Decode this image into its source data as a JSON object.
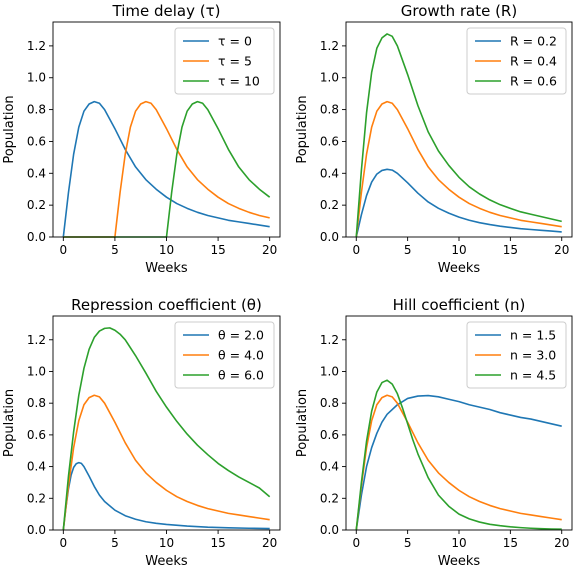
{
  "colors": {
    "series": [
      "#1f77b4",
      "#ff7f0e",
      "#2ca02c"
    ],
    "axes": "#000000",
    "legend_border": "#cccccc"
  },
  "chart_data": [
    {
      "type": "line",
      "title": "Time delay (τ)",
      "xlabel": "Weeks",
      "ylabel": "Population",
      "xlim": [
        -1,
        21
      ],
      "ylim": [
        0,
        1.35
      ],
      "xticks": [
        0,
        5,
        10,
        15,
        20
      ],
      "yticks": [
        0.0,
        0.2,
        0.4,
        0.6,
        0.8,
        1.0,
        1.2
      ],
      "grid": false,
      "legend_position": "top-right",
      "series": [
        {
          "name": "τ = 0",
          "x": [
            0,
            0.5,
            1,
            1.5,
            2,
            2.5,
            3,
            3.5,
            4,
            5,
            6,
            7,
            8,
            9,
            10,
            11,
            12,
            13,
            14,
            15,
            16,
            17,
            18,
            19,
            20
          ],
          "y": [
            0,
            0.28,
            0.52,
            0.69,
            0.79,
            0.835,
            0.85,
            0.84,
            0.8,
            0.68,
            0.55,
            0.44,
            0.36,
            0.3,
            0.25,
            0.21,
            0.18,
            0.155,
            0.135,
            0.12,
            0.105,
            0.095,
            0.085,
            0.075,
            0.065
          ]
        },
        {
          "name": "τ = 5",
          "x": [
            0,
            5,
            5.5,
            6,
            6.5,
            7,
            7.5,
            8,
            8.5,
            9,
            10,
            11,
            12,
            13,
            14,
            15,
            16,
            17,
            18,
            19,
            20
          ],
          "y": [
            0,
            0,
            0.28,
            0.52,
            0.69,
            0.79,
            0.835,
            0.85,
            0.84,
            0.8,
            0.68,
            0.55,
            0.44,
            0.36,
            0.3,
            0.25,
            0.21,
            0.18,
            0.155,
            0.135,
            0.12
          ]
        },
        {
          "name": "τ = 10",
          "x": [
            0,
            10,
            10.5,
            11,
            11.5,
            12,
            12.5,
            13,
            13.5,
            14,
            15,
            16,
            17,
            18,
            19,
            20
          ],
          "y": [
            0,
            0,
            0.28,
            0.52,
            0.69,
            0.79,
            0.835,
            0.85,
            0.84,
            0.8,
            0.68,
            0.55,
            0.44,
            0.36,
            0.3,
            0.25
          ]
        }
      ]
    },
    {
      "type": "line",
      "title": "Growth rate (R)",
      "xlabel": "Weeks",
      "ylabel": "Population",
      "xlim": [
        -1,
        21
      ],
      "ylim": [
        0,
        1.35
      ],
      "xticks": [
        0,
        5,
        10,
        15,
        20
      ],
      "yticks": [
        0.0,
        0.2,
        0.4,
        0.6,
        0.8,
        1.0,
        1.2
      ],
      "grid": false,
      "legend_position": "top-right",
      "series": [
        {
          "name": "R = 0.2",
          "x": [
            0,
            0.5,
            1,
            1.5,
            2,
            2.5,
            3,
            3.5,
            4,
            5,
            6,
            7,
            8,
            9,
            10,
            11,
            12,
            13,
            14,
            15,
            16,
            17,
            18,
            19,
            20
          ],
          "y": [
            0,
            0.14,
            0.26,
            0.345,
            0.395,
            0.418,
            0.425,
            0.42,
            0.4,
            0.34,
            0.275,
            0.22,
            0.18,
            0.15,
            0.125,
            0.105,
            0.09,
            0.078,
            0.068,
            0.06,
            0.052,
            0.047,
            0.042,
            0.037,
            0.032
          ]
        },
        {
          "name": "R = 0.4",
          "x": [
            0,
            0.5,
            1,
            1.5,
            2,
            2.5,
            3,
            3.5,
            4,
            5,
            6,
            7,
            8,
            9,
            10,
            11,
            12,
            13,
            14,
            15,
            16,
            17,
            18,
            19,
            20
          ],
          "y": [
            0,
            0.28,
            0.52,
            0.69,
            0.79,
            0.835,
            0.85,
            0.84,
            0.8,
            0.68,
            0.55,
            0.44,
            0.36,
            0.3,
            0.25,
            0.21,
            0.18,
            0.155,
            0.135,
            0.12,
            0.105,
            0.095,
            0.085,
            0.075,
            0.065
          ]
        },
        {
          "name": "R = 0.6",
          "x": [
            0,
            0.5,
            1,
            1.5,
            2,
            2.5,
            3,
            3.5,
            4,
            5,
            6,
            7,
            8,
            9,
            10,
            11,
            12,
            13,
            14,
            15,
            16,
            17,
            18,
            19,
            20
          ],
          "y": [
            0,
            0.42,
            0.78,
            1.035,
            1.185,
            1.25,
            1.275,
            1.26,
            1.2,
            1.02,
            0.825,
            0.66,
            0.54,
            0.45,
            0.375,
            0.315,
            0.27,
            0.233,
            0.203,
            0.18,
            0.158,
            0.143,
            0.128,
            0.113,
            0.098
          ]
        }
      ]
    },
    {
      "type": "line",
      "title": "Repression coefficient (θ)",
      "xlabel": "Weeks",
      "ylabel": "Population",
      "xlim": [
        -1,
        21
      ],
      "ylim": [
        0,
        1.35
      ],
      "xticks": [
        0,
        5,
        10,
        15,
        20
      ],
      "yticks": [
        0.0,
        0.2,
        0.4,
        0.6,
        0.8,
        1.0,
        1.2
      ],
      "grid": false,
      "legend_position": "top-right",
      "series": [
        {
          "name": "θ = 2.0",
          "x": [
            0,
            0.25,
            0.5,
            0.75,
            1,
            1.25,
            1.5,
            1.75,
            2,
            2.5,
            3,
            3.5,
            4,
            5,
            6,
            7,
            8,
            9,
            10,
            12,
            14,
            16,
            18,
            20
          ],
          "y": [
            0,
            0.14,
            0.26,
            0.345,
            0.395,
            0.418,
            0.425,
            0.42,
            0.4,
            0.34,
            0.275,
            0.22,
            0.18,
            0.125,
            0.09,
            0.068,
            0.052,
            0.042,
            0.035,
            0.025,
            0.018,
            0.014,
            0.011,
            0.009
          ]
        },
        {
          "name": "θ = 4.0",
          "x": [
            0,
            0.5,
            1,
            1.5,
            2,
            2.5,
            3,
            3.5,
            4,
            5,
            6,
            7,
            8,
            9,
            10,
            11,
            12,
            13,
            14,
            15,
            16,
            17,
            18,
            19,
            20
          ],
          "y": [
            0,
            0.28,
            0.52,
            0.69,
            0.79,
            0.835,
            0.85,
            0.84,
            0.8,
            0.68,
            0.55,
            0.44,
            0.36,
            0.3,
            0.25,
            0.21,
            0.18,
            0.155,
            0.135,
            0.12,
            0.105,
            0.095,
            0.085,
            0.075,
            0.065
          ]
        },
        {
          "name": "θ = 6.0",
          "x": [
            0,
            0.5,
            1,
            1.5,
            2,
            2.5,
            3,
            3.5,
            4,
            4.5,
            5,
            5.5,
            6,
            7,
            8,
            9,
            10,
            11,
            12,
            13,
            14,
            15,
            16,
            17,
            18,
            19,
            20
          ],
          "y": [
            0,
            0.34,
            0.62,
            0.85,
            1.02,
            1.14,
            1.215,
            1.255,
            1.272,
            1.275,
            1.26,
            1.235,
            1.2,
            1.1,
            0.99,
            0.875,
            0.775,
            0.685,
            0.605,
            0.535,
            0.475,
            0.42,
            0.375,
            0.335,
            0.3,
            0.265,
            0.21
          ]
        }
      ]
    },
    {
      "type": "line",
      "title": "Hill coefficient (n)",
      "xlabel": "Weeks",
      "ylabel": "Population",
      "xlim": [
        -1,
        21
      ],
      "ylim": [
        0,
        1.35
      ],
      "xticks": [
        0,
        5,
        10,
        15,
        20
      ],
      "yticks": [
        0.0,
        0.2,
        0.4,
        0.6,
        0.8,
        1.0,
        1.2
      ],
      "grid": false,
      "legend_position": "top-right",
      "series": [
        {
          "name": "n = 1.5",
          "x": [
            0,
            0.5,
            1,
            1.5,
            2,
            2.5,
            3,
            4,
            5,
            6,
            7,
            8,
            9,
            10,
            11,
            12,
            13,
            14,
            15,
            16,
            17,
            18,
            19,
            20
          ],
          "y": [
            0,
            0.22,
            0.4,
            0.52,
            0.61,
            0.68,
            0.73,
            0.79,
            0.83,
            0.845,
            0.848,
            0.84,
            0.825,
            0.81,
            0.79,
            0.775,
            0.76,
            0.74,
            0.725,
            0.71,
            0.7,
            0.685,
            0.67,
            0.655
          ]
        },
        {
          "name": "n = 3.0",
          "x": [
            0,
            0.5,
            1,
            1.5,
            2,
            2.5,
            3,
            3.5,
            4,
            5,
            6,
            7,
            8,
            9,
            10,
            11,
            12,
            13,
            14,
            15,
            16,
            17,
            18,
            19,
            20
          ],
          "y": [
            0,
            0.28,
            0.52,
            0.69,
            0.79,
            0.835,
            0.85,
            0.84,
            0.8,
            0.68,
            0.55,
            0.44,
            0.36,
            0.3,
            0.25,
            0.21,
            0.18,
            0.155,
            0.135,
            0.12,
            0.105,
            0.095,
            0.085,
            0.075,
            0.065
          ]
        },
        {
          "name": "n = 4.5",
          "x": [
            0,
            0.5,
            1,
            1.5,
            2,
            2.5,
            3,
            3.5,
            4,
            4.5,
            5,
            5.5,
            6,
            7,
            8,
            9,
            10,
            11,
            12,
            13,
            14,
            15,
            16,
            17,
            18,
            19,
            20
          ],
          "y": [
            0,
            0.3,
            0.56,
            0.75,
            0.87,
            0.93,
            0.945,
            0.92,
            0.86,
            0.77,
            0.67,
            0.57,
            0.48,
            0.33,
            0.22,
            0.15,
            0.1,
            0.07,
            0.05,
            0.036,
            0.027,
            0.02,
            0.015,
            0.011,
            0.008,
            0.006,
            0.005
          ]
        }
      ]
    }
  ]
}
